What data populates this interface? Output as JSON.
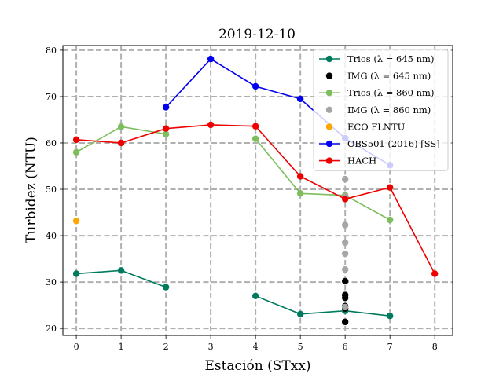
{
  "chart_data": {
    "type": "line",
    "title": "2019-12-10",
    "xlabel": "Estación (STxx)",
    "ylabel": "Turbidez (NTU)",
    "xlim": [
      -0.3,
      8.4
    ],
    "ylim": [
      18.5,
      81
    ],
    "xticks": [
      0,
      1,
      2,
      3,
      4,
      5,
      6,
      7,
      8
    ],
    "yticks": [
      20,
      30,
      40,
      50,
      60,
      70,
      80
    ],
    "grid": true,
    "grid_style": "dashed",
    "legend_position": "top-right",
    "series": [
      {
        "name": "Trios (λ = 645 nm)",
        "color": "#007a5e",
        "style": "line-marker",
        "segments": [
          [
            [
              0,
              31.8
            ],
            [
              1,
              32.5
            ],
            [
              2,
              28.9
            ]
          ],
          [
            [
              4,
              27.0
            ],
            [
              5,
              23.1
            ],
            [
              6,
              23.8
            ],
            [
              7,
              22.7
            ]
          ]
        ]
      },
      {
        "name": "IMG (λ = 645 nm)",
        "color": "#000000",
        "style": "marker",
        "points": [
          [
            6,
            30.2
          ],
          [
            6,
            27.2
          ],
          [
            6,
            26.6
          ],
          [
            6,
            24.8
          ],
          [
            6,
            24.3
          ],
          [
            6,
            21.4
          ]
        ]
      },
      {
        "name": "Trios (λ = 860 nm)",
        "color": "#7dbd5c",
        "style": "line-marker",
        "segments": [
          [
            [
              0,
              58.0
            ],
            [
              1,
              63.5
            ],
            [
              2,
              61.9
            ]
          ],
          [
            [
              4,
              60.9
            ],
            [
              5,
              49.1
            ],
            [
              6,
              48.7
            ],
            [
              7,
              43.4
            ]
          ]
        ]
      },
      {
        "name": "IMG (λ = 860 nm)",
        "color": "#a6a6a6",
        "style": "marker",
        "points": [
          [
            6,
            52.2
          ],
          [
            6,
            48.5
          ],
          [
            6,
            42.3
          ],
          [
            6,
            38.5
          ],
          [
            6,
            36.1
          ],
          [
            6,
            32.7
          ],
          [
            6,
            24.6
          ]
        ]
      },
      {
        "name": "ECO FLNTU",
        "color": "#ffa500",
        "style": "marker",
        "points": [
          [
            0,
            43.2
          ]
        ]
      },
      {
        "name": "OBS501 (2016) [SS]",
        "color": "#0000ee",
        "style": "line-marker",
        "segments": [
          [
            [
              2,
              67.7
            ],
            [
              3,
              78.1
            ],
            [
              4,
              72.2
            ],
            [
              5,
              69.5
            ],
            [
              6,
              61.0
            ],
            [
              7,
              55.2
            ]
          ]
        ]
      },
      {
        "name": "HACH",
        "color": "#ee0000",
        "style": "line-marker",
        "segments": [
          [
            [
              0,
              60.7
            ],
            [
              1,
              60.0
            ],
            [
              2,
              63.1
            ],
            [
              3,
              63.9
            ],
            [
              4,
              63.6
            ],
            [
              5,
              52.8
            ],
            [
              6,
              47.9
            ],
            [
              7,
              50.4
            ],
            [
              8,
              31.8
            ]
          ]
        ]
      }
    ]
  }
}
